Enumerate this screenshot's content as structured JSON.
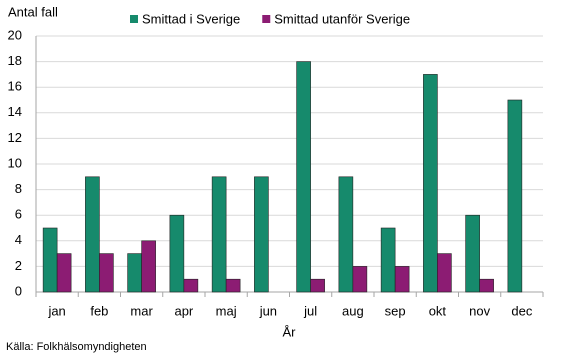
{
  "chart_data": {
    "type": "bar",
    "y_label": "Antal fall",
    "x_label": "År",
    "source": "Källa: Folkhälsomyndigheten",
    "categories": [
      "jan",
      "feb",
      "mar",
      "apr",
      "maj",
      "jun",
      "jul",
      "aug",
      "sep",
      "okt",
      "nov",
      "dec"
    ],
    "series": [
      {
        "name": "Smittad i Sverige",
        "color": "#168a6c",
        "values": [
          5,
          9,
          3,
          6,
          9,
          9,
          18,
          9,
          5,
          17,
          6,
          15
        ]
      },
      {
        "name": "Smittad utanför Sverige",
        "color": "#8c1c73",
        "values": [
          3,
          3,
          4,
          1,
          1,
          0,
          1,
          2,
          2,
          3,
          1,
          0
        ]
      }
    ],
    "ylim": [
      0,
      20
    ],
    "yticks": [
      0,
      2,
      4,
      6,
      8,
      10,
      12,
      14,
      16,
      18,
      20
    ],
    "grid": true
  }
}
